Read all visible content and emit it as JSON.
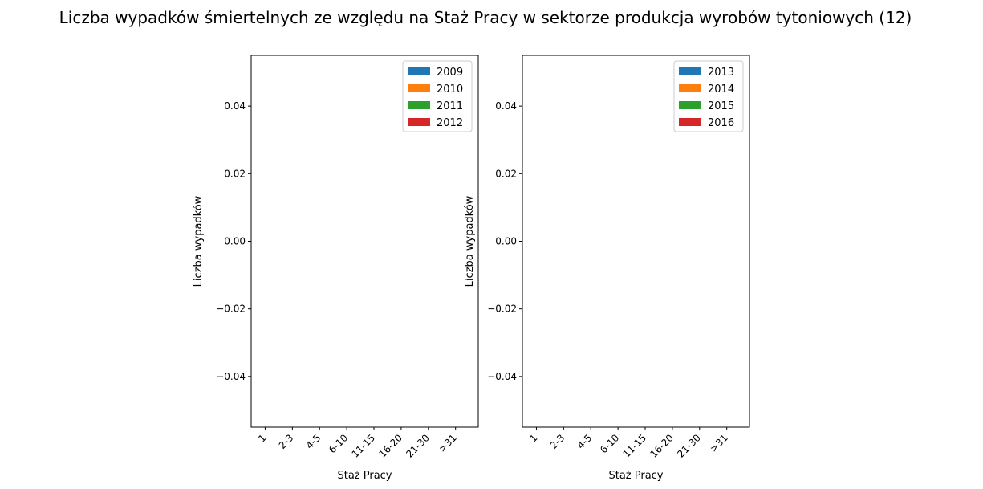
{
  "chart_data": {
    "title": "Liczba wypadków śmiertelnych ze względu na Staż Pracy w sektorze produkcja wyrobów tytoniowych  (12)",
    "panels": [
      {
        "type": "bar",
        "xlabel": "Staż Pracy",
        "ylabel": "Liczba wypadków",
        "categories": [
          "1",
          "2-3",
          "4-5",
          "6-10",
          "11-15",
          "16-20",
          "21-30",
          ">31"
        ],
        "ylim": [
          -0.055,
          0.055
        ],
        "yticks": [
          "0.04",
          "0.02",
          "0.00",
          "−0.02",
          "−0.04"
        ],
        "ytick_values": [
          0.04,
          0.02,
          0.0,
          -0.02,
          -0.04
        ],
        "legend_position": "top-right",
        "series": [
          {
            "name": "2009",
            "color": "#1f77b4",
            "values": [
              0,
              0,
              0,
              0,
              0,
              0,
              0,
              0
            ]
          },
          {
            "name": "2010",
            "color": "#ff7f0e",
            "values": [
              0,
              0,
              0,
              0,
              0,
              0,
              0,
              0
            ]
          },
          {
            "name": "2011",
            "color": "#2ca02c",
            "values": [
              0,
              0,
              0,
              0,
              0,
              0,
              0,
              0
            ]
          },
          {
            "name": "2012",
            "color": "#d62728",
            "values": [
              0,
              0,
              0,
              0,
              0,
              0,
              0,
              0
            ]
          }
        ]
      },
      {
        "type": "bar",
        "xlabel": "Staż Pracy",
        "ylabel": "Liczba wypadków",
        "categories": [
          "1",
          "2-3",
          "4-5",
          "6-10",
          "11-15",
          "16-20",
          "21-30",
          ">31"
        ],
        "ylim": [
          -0.055,
          0.055
        ],
        "yticks": [
          "0.04",
          "0.02",
          "0.00",
          "−0.02",
          "−0.04"
        ],
        "ytick_values": [
          0.04,
          0.02,
          0.0,
          -0.02,
          -0.04
        ],
        "legend_position": "top-right",
        "series": [
          {
            "name": "2013",
            "color": "#1f77b4",
            "values": [
              0,
              0,
              0,
              0,
              0,
              0,
              0,
              0
            ]
          },
          {
            "name": "2014",
            "color": "#ff7f0e",
            "values": [
              0,
              0,
              0,
              0,
              0,
              0,
              0,
              0
            ]
          },
          {
            "name": "2015",
            "color": "#2ca02c",
            "values": [
              0,
              0,
              0,
              0,
              0,
              0,
              0,
              0
            ]
          },
          {
            "name": "2016",
            "color": "#d62728",
            "values": [
              0,
              0,
              0,
              0,
              0,
              0,
              0,
              0
            ]
          }
        ]
      }
    ]
  }
}
